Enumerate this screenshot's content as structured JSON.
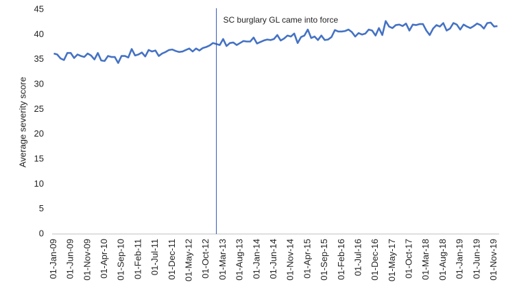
{
  "chart_data": {
    "type": "line",
    "y_label": "Average severity score",
    "annotation": {
      "text": "SC burglary GL came into force",
      "x": 48
    },
    "categories": [
      "01-Jan-09",
      null,
      null,
      null,
      null,
      "01-Jun-09",
      null,
      null,
      null,
      null,
      "01-Nov-09",
      null,
      null,
      null,
      null,
      "01-Apr-10",
      null,
      null,
      null,
      null,
      "01-Sep-10",
      null,
      null,
      null,
      null,
      "01-Feb-11",
      null,
      null,
      null,
      null,
      "01-Jul-11",
      null,
      null,
      null,
      null,
      "01-Dec-11",
      null,
      null,
      null,
      null,
      "01-May-12",
      null,
      null,
      null,
      null,
      "01-Oct-12",
      null,
      null,
      null,
      null,
      "01-Mar-13",
      null,
      null,
      null,
      null,
      "01-Aug-13",
      null,
      null,
      null,
      null,
      "01-Jan-14",
      null,
      null,
      null,
      null,
      "01-Jun-14",
      null,
      null,
      null,
      null,
      "01-Nov-14",
      null,
      null,
      null,
      null,
      "01-Apr-15",
      null,
      null,
      null,
      null,
      "01-Sep-15",
      null,
      null,
      null,
      null,
      "01-Feb-16",
      null,
      null,
      null,
      null,
      "01-Jul-16",
      null,
      null,
      null,
      null,
      "01-Dec-16",
      null,
      null,
      null,
      null,
      "01-May-17",
      null,
      null,
      null,
      null,
      "01-Oct-17",
      null,
      null,
      null,
      null,
      "01-Mar-18",
      null,
      null,
      null,
      null,
      "01-Aug-18",
      null,
      null,
      null,
      null,
      "01-Jan-19",
      null,
      null,
      null,
      null,
      "01-Jun-19",
      null,
      null,
      null,
      null,
      "01-Nov-19",
      null
    ],
    "values": [
      36.2,
      36.0,
      35.2,
      34.9,
      36.3,
      36.3,
      35.3,
      36.0,
      35.7,
      35.5,
      36.2,
      35.8,
      35.0,
      36.3,
      34.8,
      34.7,
      35.7,
      35.5,
      35.5,
      34.3,
      35.7,
      35.7,
      35.4,
      37.1,
      35.8,
      36.0,
      36.4,
      35.6,
      36.9,
      36.6,
      36.8,
      35.7,
      36.2,
      36.5,
      36.9,
      37.0,
      36.7,
      36.5,
      36.6,
      36.9,
      37.2,
      36.6,
      37.2,
      36.8,
      37.3,
      37.5,
      37.8,
      38.3,
      38.1,
      37.9,
      39.1,
      37.7,
      38.3,
      38.4,
      37.9,
      38.3,
      38.7,
      38.6,
      38.6,
      39.4,
      38.2,
      38.5,
      38.8,
      39.0,
      38.9,
      39.1,
      39.9,
      38.8,
      39.2,
      39.8,
      39.6,
      40.2,
      38.3,
      39.5,
      39.8,
      41.0,
      39.3,
      39.6,
      38.9,
      39.8,
      38.9,
      39.0,
      39.5,
      40.9,
      40.6,
      40.6,
      40.7,
      41.0,
      40.5,
      39.6,
      40.3,
      40.0,
      40.2,
      41.0,
      40.8,
      39.8,
      41.3,
      39.9,
      42.7,
      41.6,
      41.3,
      41.9,
      42.0,
      41.7,
      42.2,
      40.8,
      42.0,
      41.9,
      42.1,
      42.1,
      40.8,
      39.9,
      41.2,
      41.9,
      41.6,
      42.3,
      40.8,
      41.2,
      42.3,
      42.0,
      41.0,
      42.0,
      41.6,
      41.3,
      41.7,
      42.2,
      41.9,
      41.2,
      42.3,
      42.4,
      41.6,
      41.7
    ],
    "color": "#4472c4",
    "ylim": [
      0,
      45
    ],
    "yticks": [
      0,
      5,
      10,
      15,
      20,
      25,
      30,
      35,
      40,
      45
    ],
    "grid": false
  }
}
